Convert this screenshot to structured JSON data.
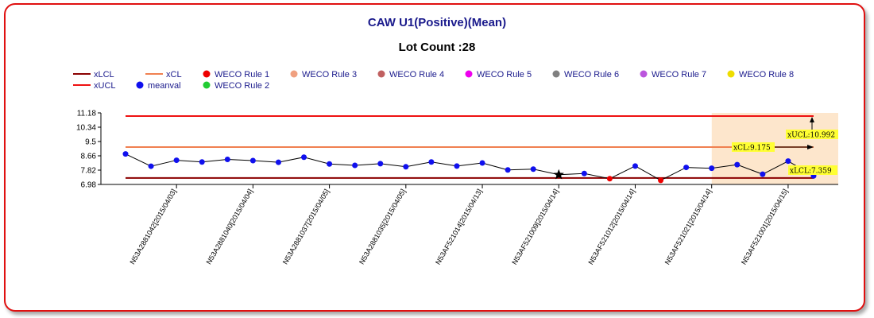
{
  "chart_data": {
    "type": "line",
    "title": "CAW U1(Positive)(Mean)",
    "subtitle": "Lot Count :28",
    "legend": [
      {
        "name": "xLCL",
        "color": "#8b0000",
        "kind": "line"
      },
      {
        "name": "xCL",
        "color": "#f08050",
        "kind": "line"
      },
      {
        "name": "WECO Rule 1",
        "color": "#ee0000",
        "kind": "dot"
      },
      {
        "name": "WECO Rule 3",
        "color": "#f0a080",
        "kind": "dot"
      },
      {
        "name": "WECO Rule 4",
        "color": "#c06060",
        "kind": "dot"
      },
      {
        "name": "WECO Rule 5",
        "color": "#ee00ee",
        "kind": "dot"
      },
      {
        "name": "WECO Rule 6",
        "color": "#808080",
        "kind": "dot"
      },
      {
        "name": "WECO Rule 7",
        "color": "#bb55dd",
        "kind": "dot"
      },
      {
        "name": "WECO Rule 8",
        "color": "#eedd00",
        "kind": "dot"
      },
      {
        "name": "xUCL",
        "color": "#ee1111",
        "kind": "line"
      },
      {
        "name": "meanval",
        "color": "#1010ee",
        "kind": "dot"
      },
      {
        "name": "WECO Rule 2",
        "color": "#22cc33",
        "kind": "dot"
      }
    ],
    "y_ticks": [
      "11.18",
      "10.34",
      "9.5",
      "8.66",
      "7.82",
      "6.98"
    ],
    "ylim": [
      6.98,
      11.18
    ],
    "x_labels": [
      "N53A2881042[2015/04/03]",
      "N53A2881040[2015/04/04]",
      "N53A2881037[2015/04/05]",
      "N53A2881035[2015/04/05]",
      "N53AF521014[2015/04/13]",
      "N53AF521009[2015/04/14]",
      "N53AF521012[2015/04/14]",
      "N53AF521021[2015/04/14]",
      "N53AF521001[2015/04/15]"
    ],
    "x_label_index": [
      2,
      5,
      8,
      11,
      14,
      17,
      20,
      23,
      26
    ],
    "limits": {
      "xUCL": 10.992,
      "xCL": 9.175,
      "xLCL": 7.359
    },
    "limit_labels": {
      "xUCL": "xUCL:10.992",
      "xCL": "xCL:9.175",
      "xLCL": "xLCL:7.359"
    },
    "values": [
      8.77,
      8.05,
      8.4,
      8.3,
      8.45,
      8.38,
      8.28,
      8.58,
      8.18,
      8.1,
      8.2,
      8.02,
      8.3,
      8.06,
      8.24,
      7.83,
      7.88,
      7.55,
      7.62,
      7.32,
      8.06,
      7.22,
      7.98,
      7.93,
      8.14,
      7.58,
      8.35,
      7.48
    ],
    "point_status": [
      "meanval",
      "meanval",
      "meanval",
      "meanval",
      "meanval",
      "meanval",
      "meanval",
      "meanval",
      "meanval",
      "meanval",
      "meanval",
      "meanval",
      "meanval",
      "meanval",
      "meanval",
      "meanval",
      "meanval",
      "star",
      "meanval",
      "WECO Rule 1",
      "meanval",
      "WECO Rule 1",
      "meanval",
      "meanval",
      "meanval",
      "meanval",
      "meanval",
      "meanval"
    ],
    "highlight_from_index": 24
  }
}
